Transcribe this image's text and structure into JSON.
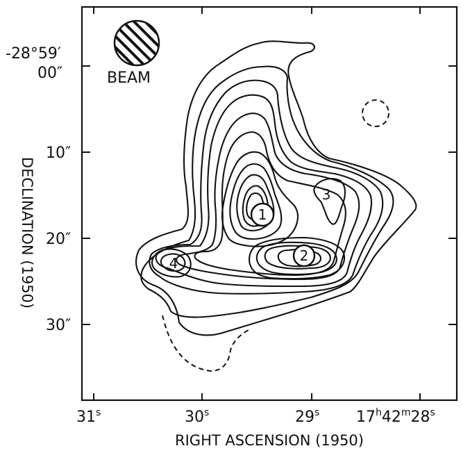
{
  "chart_data": {
    "type": "contour",
    "xlabel": "RIGHT ASCENSION (1950)",
    "ylabel": "DECLINATION (1950)",
    "x_ticks": [
      {
        "value": 31,
        "main": "31",
        "sup": "s"
      },
      {
        "value": 30,
        "main": "30",
        "sup": "s"
      },
      {
        "value": 29,
        "main": "29",
        "sup": "s"
      },
      {
        "value": 28,
        "label": "17h42m28s"
      }
    ],
    "y_ticks": [
      {
        "value": 0,
        "lines": [
          "-28°59′",
          "00″"
        ]
      },
      {
        "value": 10,
        "label": "10″"
      },
      {
        "value": 20,
        "label": "20″"
      },
      {
        "value": 30,
        "label": "30″"
      }
    ],
    "xlim": [
      31.1,
      27.65
    ],
    "ylim": [
      -5,
      39
    ],
    "beam_label": "BEAM",
    "source_labels": [
      {
        "label": "1",
        "ra": 29.45,
        "dec": 17.0
      },
      {
        "label": "2",
        "ra": 28.95,
        "dec": 22.0
      },
      {
        "label": "3",
        "ra": 28.85,
        "dec": 14.6
      },
      {
        "label": "4",
        "ra": 30.25,
        "dec": 22.8
      }
    ],
    "negative_contours_dashed": true,
    "grid": false
  }
}
